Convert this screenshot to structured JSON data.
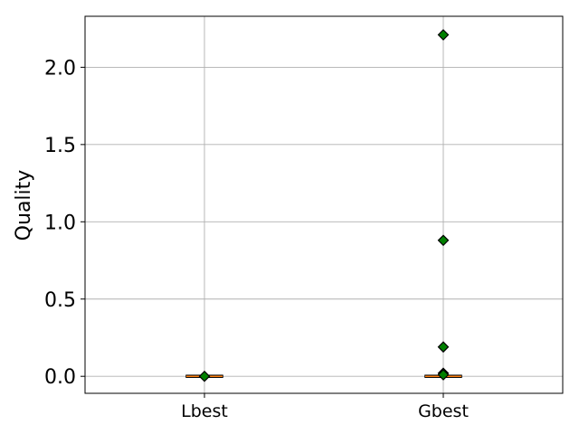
{
  "chart_data": {
    "type": "box",
    "title": "",
    "xlabel": "",
    "ylabel": "Quality",
    "categories": [
      "Lbest",
      "Gbest"
    ],
    "ylim": [
      -0.11,
      2.33
    ],
    "yticks": [
      "0.0",
      "0.5",
      "1.0",
      "1.5",
      "2.0"
    ],
    "grid": true,
    "boxes": [
      {
        "category": "Lbest",
        "q1": 0.0,
        "median": 0.0,
        "q3": 0.0,
        "whisker_low": 0.0,
        "whisker_high": 0.0,
        "outliers": [
          0.0
        ]
      },
      {
        "category": "Gbest",
        "q1": 0.0,
        "median": 0.0,
        "q3": 0.0,
        "whisker_low": 0.0,
        "whisker_high": 0.0,
        "outliers": [
          2.21,
          0.88,
          0.19,
          0.02,
          0.01
        ]
      }
    ],
    "colors": {
      "median": "#ff7f0e",
      "box": "#000000",
      "flier_fill": "#008000",
      "flier_edge": "#000000",
      "grid": "#b0b0b0"
    }
  }
}
